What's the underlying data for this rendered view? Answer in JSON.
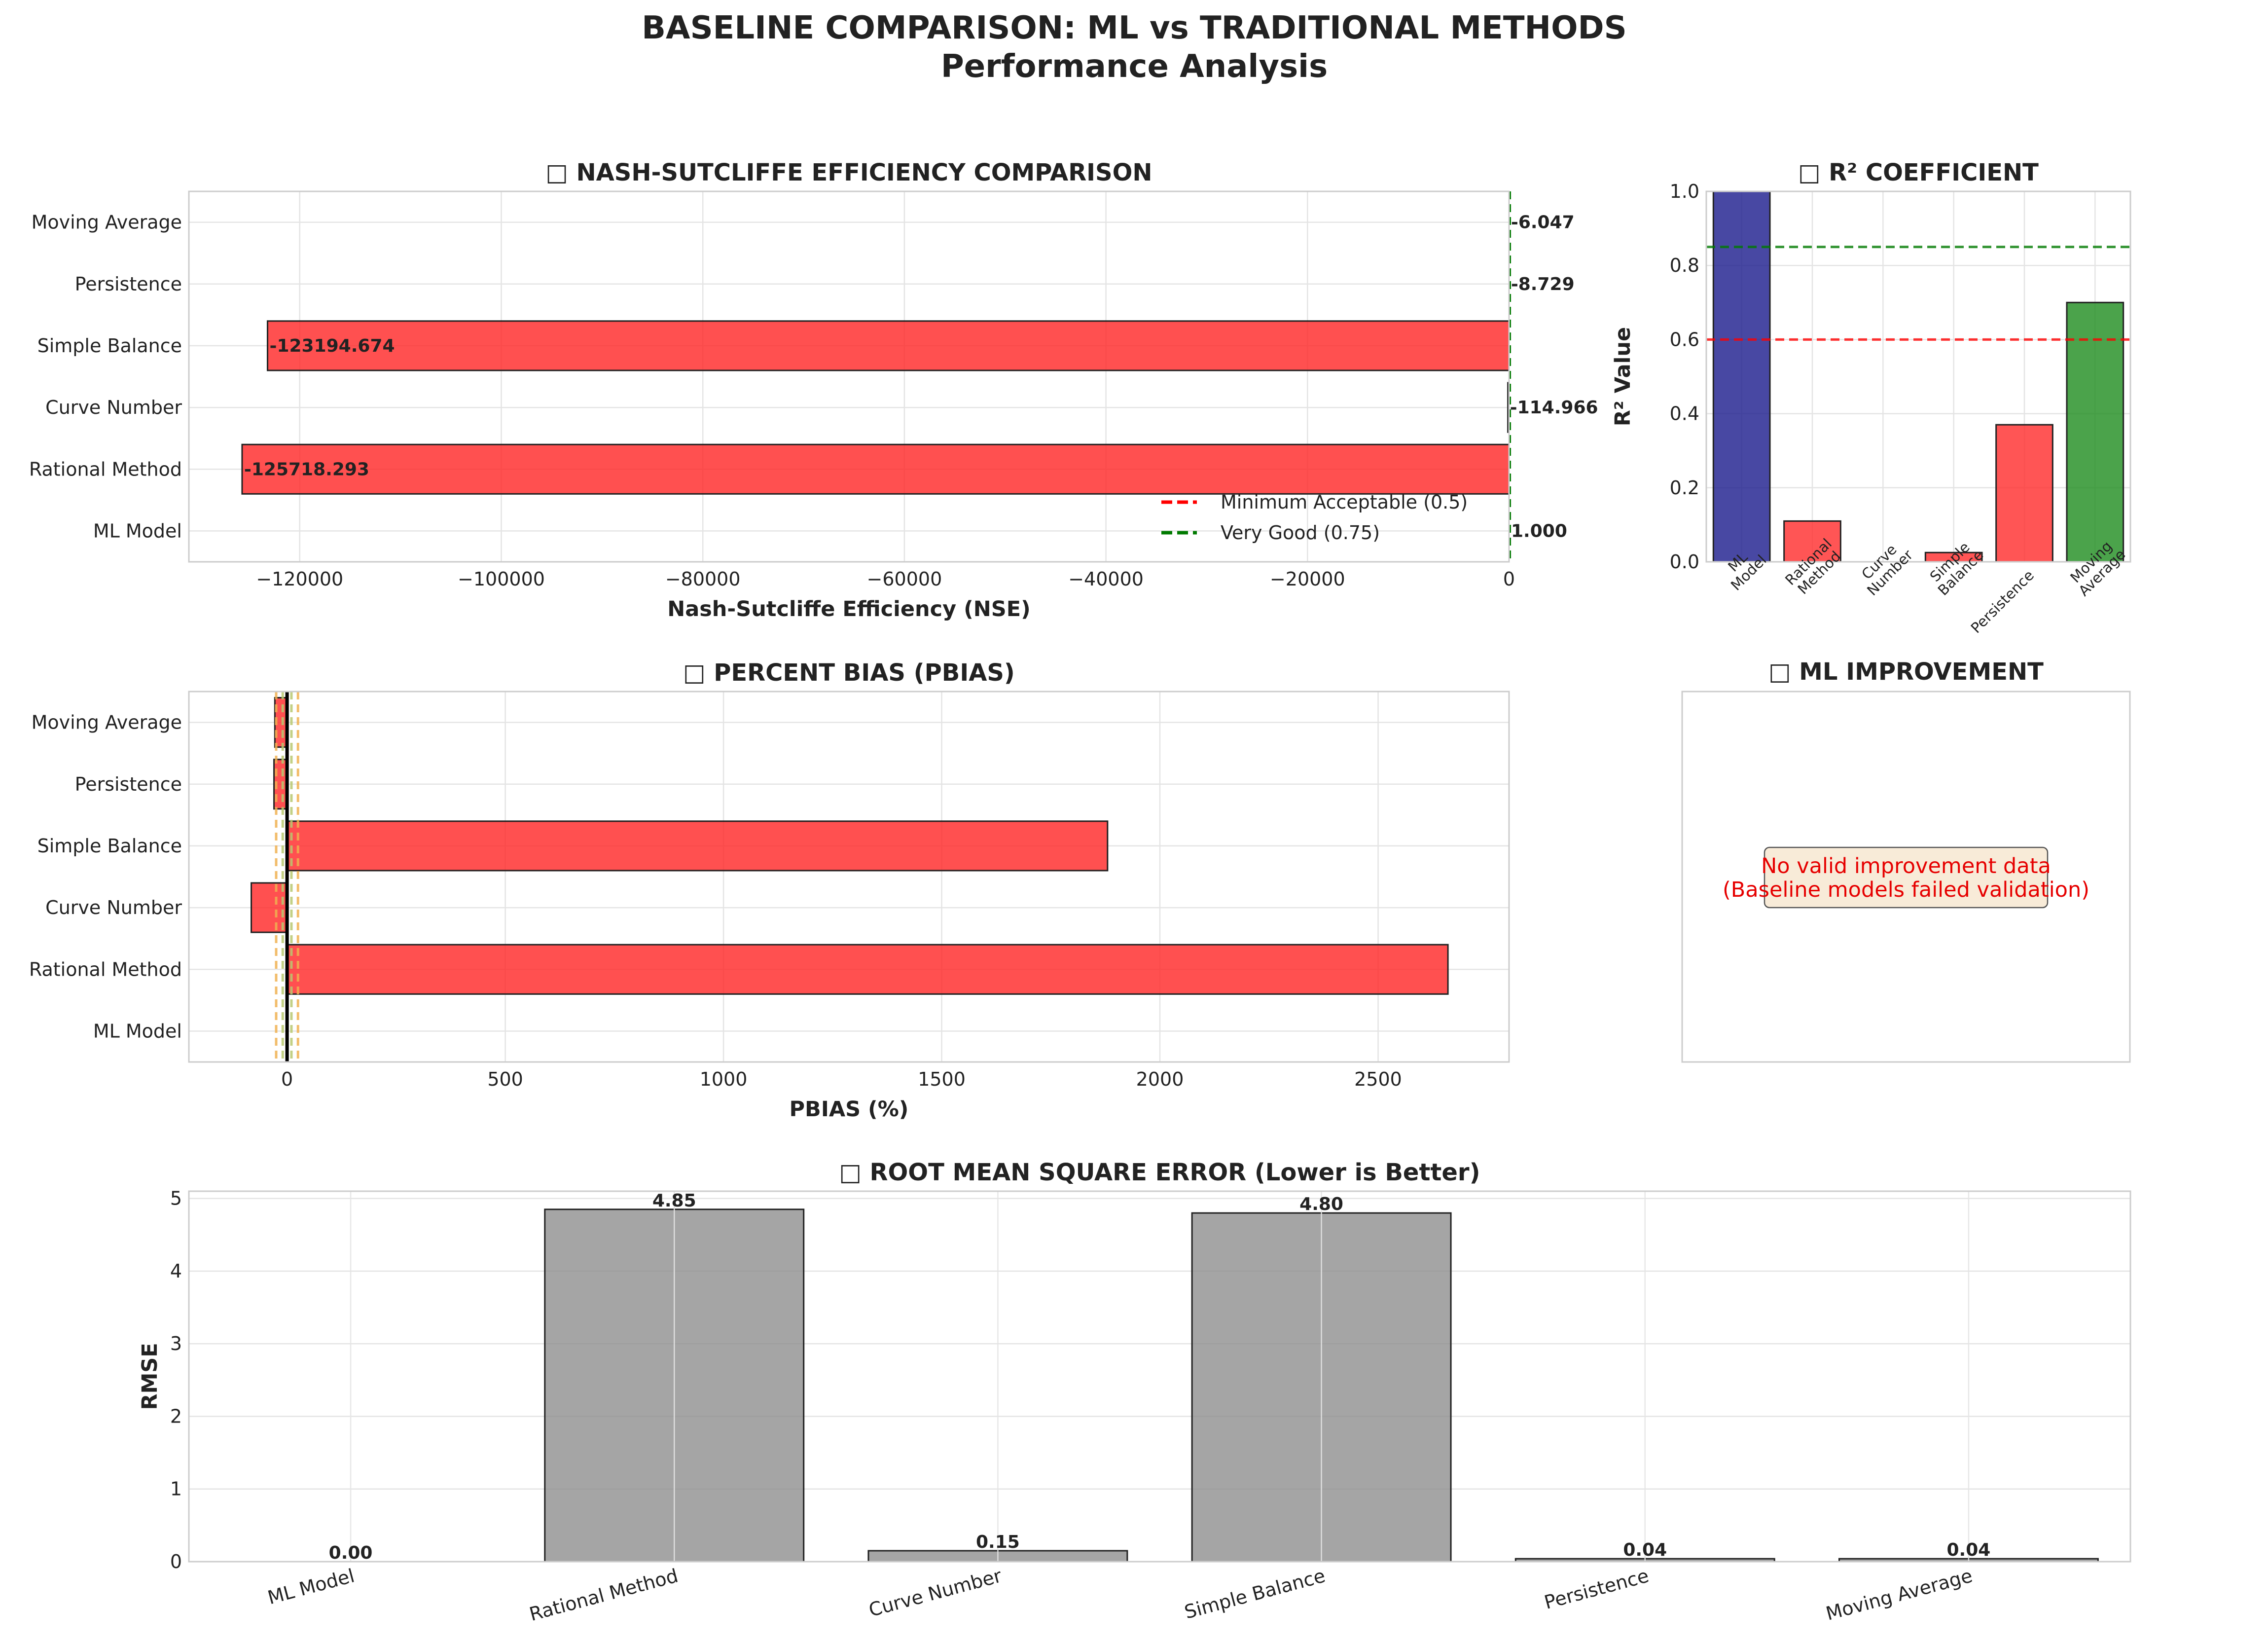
{
  "title": {
    "line1": "BASELINE COMPARISON: ML vs TRADITIONAL METHODS",
    "line2": "Performance Analysis"
  },
  "colors": {
    "red": "#ff2a2a",
    "blue": "#1a1a8c",
    "green": "#1e8c1e",
    "gray": "#8c8c8c",
    "dashRed": "#ff0000",
    "dashGreen": "#007a00",
    "threshOrange": "#f0b050",
    "threshYellowGreen": "#b8c870"
  },
  "models": [
    "ML Model",
    "Rational Method",
    "Curve Number",
    "Simple Balance",
    "Persistence",
    "Moving Average"
  ],
  "r2_tick_labels": [
    [
      "ML",
      "Model"
    ],
    [
      "Rational",
      "Method"
    ],
    [
      "Curve",
      "Number"
    ],
    [
      "Simple",
      "Balance"
    ],
    [
      "Persistence"
    ],
    [
      "Moving",
      "Average"
    ]
  ],
  "improvement": {
    "title": "□ ML IMPROVEMENT",
    "message_line1": "No valid improvement data",
    "message_line2": "(Baseline models failed validation)"
  },
  "chart_data": [
    {
      "id": "nse",
      "type": "bar",
      "orientation": "horizontal",
      "title": "□ NASH-SUTCLIFFE EFFICIENCY COMPARISON",
      "xlabel": "Nash-Sutcliffe Efficiency (NSE)",
      "ylabel": "",
      "categories": [
        "ML Model",
        "Rational Method",
        "Curve Number",
        "Simple Balance",
        "Persistence",
        "Moving Average"
      ],
      "values": [
        1.0,
        -125718.293,
        -114.966,
        -123194.674,
        -8.729,
        -6.047
      ],
      "value_labels": [
        "1.000",
        "-125718.293",
        "-114.966",
        "-123194.674",
        "-8.729",
        "-6.047"
      ],
      "bar_colors": [
        "blue",
        "red",
        "red",
        "red",
        "red",
        "red"
      ],
      "xlim": [
        -131000,
        0
      ],
      "xticks": [
        -120000,
        -100000,
        -80000,
        -60000,
        -40000,
        -20000,
        0
      ],
      "xtick_labels": [
        "−120000",
        "−100000",
        "−80000",
        "−60000",
        "−40000",
        "−20000",
        "0"
      ],
      "reference_lines": [
        {
          "value": 0.5,
          "label": "Minimum Acceptable (0.5)",
          "color": "dashRed"
        },
        {
          "value": 0.75,
          "label": "Very Good (0.75)",
          "color": "dashGreen"
        }
      ],
      "legend": "lower-right",
      "grid": true
    },
    {
      "id": "r2",
      "type": "bar",
      "title": "□ R² COEFFICIENT",
      "xlabel": "",
      "ylabel": "R² Value",
      "categories": [
        "ML Model",
        "Rational Method",
        "Curve Number",
        "Simple Balance",
        "Persistence",
        "Moving Average"
      ],
      "values": [
        1.0,
        0.11,
        0.0,
        0.025,
        0.37,
        0.7
      ],
      "bar_colors": [
        "blue",
        "red",
        "red",
        "red",
        "red",
        "green"
      ],
      "ylim": [
        0,
        1.0
      ],
      "yticks": [
        0.0,
        0.2,
        0.4,
        0.6,
        0.8,
        1.0
      ],
      "ytick_labels": [
        "0.0",
        "0.2",
        "0.4",
        "0.6",
        "0.8",
        "1.0"
      ],
      "reference_lines": [
        {
          "value": 0.6,
          "color": "dashRed"
        },
        {
          "value": 0.85,
          "color": "dashGreen"
        }
      ],
      "grid": true
    },
    {
      "id": "pbias",
      "type": "bar",
      "orientation": "horizontal",
      "title": "□ PERCENT BIAS (PBIAS)",
      "xlabel": "PBIAS (%)",
      "ylabel": "",
      "categories": [
        "ML Model",
        "Rational Method",
        "Curve Number",
        "Simple Balance",
        "Persistence",
        "Moving Average"
      ],
      "values": [
        0,
        2660,
        -82,
        1880,
        -30,
        -28
      ],
      "bar_colors": [
        "red",
        "red",
        "red",
        "red",
        "red",
        "red"
      ],
      "xlim": [
        -225,
        2800
      ],
      "xticks": [
        0,
        500,
        1000,
        1500,
        2000,
        2500
      ],
      "xtick_labels": [
        "0",
        "500",
        "1000",
        "1500",
        "2000",
        "2500"
      ],
      "reference_lines": [
        {
          "value": -25,
          "color": "threshOrange"
        },
        {
          "value": 25,
          "color": "threshOrange"
        },
        {
          "value": -10,
          "color": "threshYellowGreen"
        },
        {
          "value": 10,
          "color": "threshYellowGreen"
        },
        {
          "value": 0,
          "color": "black"
        }
      ],
      "grid": true
    },
    {
      "id": "rmse",
      "type": "bar",
      "title": "□ ROOT MEAN SQUARE ERROR (Lower is Better)",
      "xlabel": "",
      "ylabel": "RMSE",
      "categories": [
        "ML Model",
        "Rational Method",
        "Curve Number",
        "Simple Balance",
        "Persistence",
        "Moving Average"
      ],
      "values": [
        0.0,
        4.85,
        0.15,
        4.8,
        0.04,
        0.04
      ],
      "value_labels": [
        "0.00",
        "4.85",
        "0.15",
        "4.80",
        "0.04",
        "0.04"
      ],
      "bar_color": "gray",
      "ylim": [
        0,
        5.1
      ],
      "yticks": [
        0,
        1,
        2,
        3,
        4,
        5
      ],
      "ytick_labels": [
        "0",
        "1",
        "2",
        "3",
        "4",
        "5"
      ],
      "grid": true
    }
  ]
}
